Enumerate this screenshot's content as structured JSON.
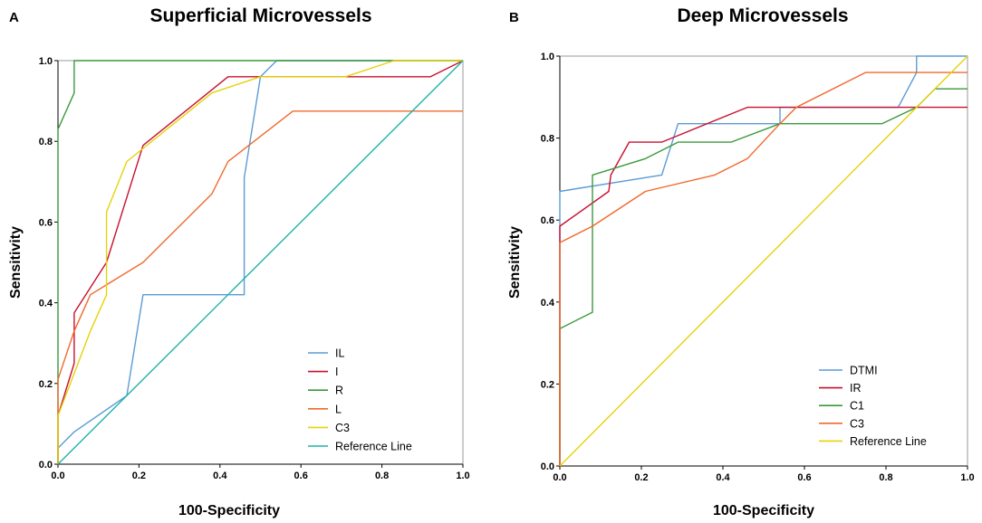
{
  "chart_data": [
    {
      "type": "line",
      "panel_label": "A",
      "title": "Superficial Microvessels",
      "xlabel": "100-Specificity",
      "ylabel": "Sensitivity",
      "xlim": [
        0,
        1
      ],
      "ylim": [
        0,
        1
      ],
      "xticks": [
        "0.0",
        "0.2",
        "0.4",
        "0.6",
        "0.8",
        "1.0"
      ],
      "yticks": [
        "0.0",
        "0.2",
        "0.4",
        "0.6",
        "0.8",
        "1.0"
      ],
      "legend_position": "bottom-right",
      "series": [
        {
          "name": "IL",
          "color": "#5b9bd5",
          "x": [
            0,
            0,
            0.04,
            0.17,
            0.21,
            0.21,
            0.46,
            0.46,
            0.5,
            0.54,
            1.0
          ],
          "y": [
            0,
            0.04,
            0.08,
            0.17,
            0.42,
            0.42,
            0.42,
            0.71,
            0.96,
            1.0,
            1.0
          ]
        },
        {
          "name": "I",
          "color": "#c8102e",
          "x": [
            0,
            0,
            0.04,
            0.04,
            0.12,
            0.21,
            0.42,
            0.92,
            1.0
          ],
          "y": [
            0,
            0.12,
            0.25,
            0.375,
            0.5,
            0.79,
            0.96,
            0.96,
            1.0
          ]
        },
        {
          "name": "R",
          "color": "#3a9a3a",
          "x": [
            0,
            0,
            0.04,
            0.04,
            1.0
          ],
          "y": [
            0,
            0.83,
            0.92,
            1.0,
            1.0
          ]
        },
        {
          "name": "L",
          "color": "#f0692c",
          "x": [
            0,
            0,
            0.04,
            0.08,
            0.21,
            0.38,
            0.42,
            0.58,
            1.0
          ],
          "y": [
            0,
            0.21,
            0.33,
            0.42,
            0.5,
            0.67,
            0.75,
            0.875,
            0.875
          ]
        },
        {
          "name": "C3",
          "color": "#e6d20a",
          "x": [
            0,
            0,
            0.08,
            0.12,
            0.12,
            0.17,
            0.38,
            0.5,
            0.71,
            0.83,
            1.0
          ],
          "y": [
            0,
            0.12,
            0.33,
            0.42,
            0.625,
            0.75,
            0.92,
            0.96,
            0.96,
            1.0,
            1.0
          ]
        },
        {
          "name": "Reference Line",
          "color": "#20b2aa",
          "x": [
            0,
            1
          ],
          "y": [
            0,
            1
          ]
        }
      ]
    },
    {
      "type": "line",
      "panel_label": "B",
      "title": "Deep Microvessels",
      "xlabel": "100-Specificity",
      "ylabel": "Sensitivity",
      "xlim": [
        0,
        1
      ],
      "ylim": [
        0,
        1
      ],
      "xticks": [
        "0.0",
        "0.2",
        "0.4",
        "0.6",
        "0.8",
        "1.0"
      ],
      "yticks": [
        "0.0",
        "0.2",
        "0.4",
        "0.6",
        "0.8",
        "1.0"
      ],
      "legend_position": "bottom-right",
      "series": [
        {
          "name": "DTMI",
          "color": "#5b9bd5",
          "x": [
            0,
            0,
            0.25,
            0.29,
            0.54,
            0.54,
            0.83,
            0.875,
            0.875,
            1.0
          ],
          "y": [
            0,
            0.67,
            0.71,
            0.835,
            0.835,
            0.875,
            0.875,
            0.96,
            1.0,
            1.0
          ]
        },
        {
          "name": "IR",
          "color": "#c8102e",
          "x": [
            0,
            0,
            0.12,
            0.125,
            0.17,
            0.25,
            0.46,
            1.0
          ],
          "y": [
            0,
            0.585,
            0.67,
            0.71,
            0.79,
            0.79,
            0.875,
            0.875
          ]
        },
        {
          "name": "C1",
          "color": "#3a9a3a",
          "x": [
            0,
            0,
            0.08,
            0.08,
            0.21,
            0.29,
            0.42,
            0.54,
            0.79,
            0.875,
            0.92,
            1.0
          ],
          "y": [
            0,
            0.335,
            0.375,
            0.71,
            0.75,
            0.79,
            0.79,
            0.835,
            0.835,
            0.875,
            0.92,
            0.92
          ]
        },
        {
          "name": "C3",
          "color": "#f0692c",
          "x": [
            0,
            0,
            0.08,
            0.21,
            0.38,
            0.46,
            0.54,
            0.58,
            0.75,
            1.0
          ],
          "y": [
            0,
            0.545,
            0.585,
            0.67,
            0.71,
            0.75,
            0.835,
            0.875,
            0.96,
            0.96
          ]
        },
        {
          "name": "Reference Line",
          "color": "#e6d20a",
          "x": [
            0,
            1
          ],
          "y": [
            0,
            1
          ]
        }
      ]
    }
  ]
}
